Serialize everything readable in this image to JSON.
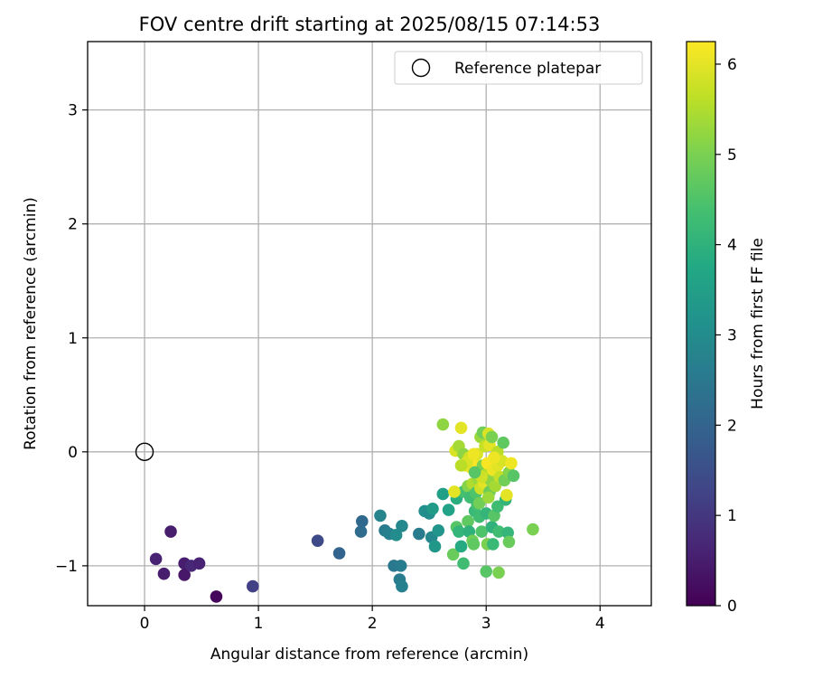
{
  "chart_data": {
    "type": "scatter",
    "title": "FOV centre drift starting at 2025/08/15 07:14:53",
    "xlabel": "Angular distance from reference (arcmin)",
    "ylabel": "Rotation from reference (arcmin)",
    "xlim": [
      -0.5,
      4.45
    ],
    "ylim": [
      -1.35,
      3.6
    ],
    "x_ticks": [
      0,
      1,
      2,
      3,
      4
    ],
    "y_ticks": [
      -1,
      0,
      1,
      2,
      3
    ],
    "x_tick_labels": [
      "0",
      "1",
      "2",
      "3",
      "4"
    ],
    "y_tick_labels": [
      "−1",
      "0",
      "1",
      "2",
      "3"
    ],
    "grid": true,
    "legend": {
      "placement": "top-right",
      "entries": [
        "Reference platepar"
      ]
    },
    "reference_point": {
      "label": "Reference platepar",
      "x": 0,
      "y": 0,
      "marker": "open-circle"
    },
    "colorbar": {
      "label": "Hours from first FF file",
      "colormap": "viridis",
      "range": [
        0,
        6.25
      ],
      "ticks": [
        0,
        1,
        2,
        3,
        4,
        5,
        6
      ],
      "tick_labels": [
        "0",
        "1",
        "2",
        "3",
        "4",
        "5",
        "6"
      ]
    },
    "series": [
      {
        "marker": "filled-circle",
        "points": [
          {
            "x": 0.63,
            "y": -1.27,
            "t": 0.1
          },
          {
            "x": 0.23,
            "y": -0.7,
            "t": 0.5
          },
          {
            "x": 0.1,
            "y": -0.94,
            "t": 0.6
          },
          {
            "x": 0.17,
            "y": -1.07,
            "t": 0.5
          },
          {
            "x": 0.35,
            "y": -0.98,
            "t": 0.5
          },
          {
            "x": 0.35,
            "y": -1.08,
            "t": 0.4
          },
          {
            "x": 0.41,
            "y": -1.0,
            "t": 0.7
          },
          {
            "x": 0.48,
            "y": -0.98,
            "t": 0.6
          },
          {
            "x": 0.95,
            "y": -1.18,
            "t": 1.2
          },
          {
            "x": 1.52,
            "y": -0.78,
            "t": 1.4
          },
          {
            "x": 1.71,
            "y": -0.89,
            "t": 2.0
          },
          {
            "x": 1.91,
            "y": -0.61,
            "t": 2.1
          },
          {
            "x": 1.9,
            "y": -0.7,
            "t": 2.2
          },
          {
            "x": 2.07,
            "y": -0.56,
            "t": 2.8
          },
          {
            "x": 2.11,
            "y": -0.69,
            "t": 2.6
          },
          {
            "x": 2.15,
            "y": -0.72,
            "t": 2.7
          },
          {
            "x": 2.21,
            "y": -0.73,
            "t": 3.0
          },
          {
            "x": 2.19,
            "y": -1.0,
            "t": 2.5
          },
          {
            "x": 2.25,
            "y": -1.0,
            "t": 2.6
          },
          {
            "x": 2.24,
            "y": -1.12,
            "t": 2.6
          },
          {
            "x": 2.26,
            "y": -1.18,
            "t": 2.7
          },
          {
            "x": 2.26,
            "y": -0.65,
            "t": 2.9
          },
          {
            "x": 2.41,
            "y": -0.72,
            "t": 2.6
          },
          {
            "x": 2.46,
            "y": -0.52,
            "t": 3.1
          },
          {
            "x": 2.5,
            "y": -0.54,
            "t": 3.0
          },
          {
            "x": 2.53,
            "y": -0.5,
            "t": 3.4
          },
          {
            "x": 2.52,
            "y": -0.75,
            "t": 2.9
          },
          {
            "x": 2.55,
            "y": -0.83,
            "t": 3.3
          },
          {
            "x": 2.58,
            "y": -0.69,
            "t": 3.2
          },
          {
            "x": 2.62,
            "y": -0.37,
            "t": 3.5
          },
          {
            "x": 2.67,
            "y": -0.51,
            "t": 3.6
          },
          {
            "x": 2.62,
            "y": 0.24,
            "t": 5.2
          },
          {
            "x": 2.71,
            "y": -0.9,
            "t": 4.8
          },
          {
            "x": 2.74,
            "y": -0.66,
            "t": 4.6
          },
          {
            "x": 2.76,
            "y": -0.7,
            "t": 4.1
          },
          {
            "x": 2.74,
            "y": -0.41,
            "t": 3.9
          },
          {
            "x": 2.78,
            "y": -0.83,
            "t": 3.8
          },
          {
            "x": 2.8,
            "y": -0.98,
            "t": 4.3
          },
          {
            "x": 2.84,
            "y": -0.61,
            "t": 4.7
          },
          {
            "x": 2.85,
            "y": -0.7,
            "t": 4.0
          },
          {
            "x": 2.88,
            "y": -0.78,
            "t": 4.9
          },
          {
            "x": 2.89,
            "y": -0.81,
            "t": 4.7
          },
          {
            "x": 2.9,
            "y": -0.52,
            "t": 4.2
          },
          {
            "x": 2.94,
            "y": -0.57,
            "t": 4.3
          },
          {
            "x": 2.96,
            "y": -0.7,
            "t": 4.5
          },
          {
            "x": 2.92,
            "y": -0.46,
            "t": 4.4
          },
          {
            "x": 3.0,
            "y": -1.05,
            "t": 4.6
          },
          {
            "x": 3.01,
            "y": -0.81,
            "t": 5.0
          },
          {
            "x": 3.06,
            "y": -0.81,
            "t": 4.2
          },
          {
            "x": 3.05,
            "y": -0.66,
            "t": 4.0
          },
          {
            "x": 3.11,
            "y": -0.7,
            "t": 4.3
          },
          {
            "x": 3.11,
            "y": -1.06,
            "t": 5.0
          },
          {
            "x": 3.19,
            "y": -0.71,
            "t": 4.1
          },
          {
            "x": 3.2,
            "y": -0.79,
            "t": 4.8
          },
          {
            "x": 3.0,
            "y": -0.54,
            "t": 4.1
          },
          {
            "x": 3.07,
            "y": -0.56,
            "t": 4.6
          },
          {
            "x": 3.1,
            "y": -0.48,
            "t": 4.3
          },
          {
            "x": 3.17,
            "y": -0.42,
            "t": 4.1
          },
          {
            "x": 3.41,
            "y": -0.68,
            "t": 5.0
          },
          {
            "x": 2.78,
            "y": 0.21,
            "t": 6.0
          },
          {
            "x": 2.73,
            "y": 0.01,
            "t": 5.9
          },
          {
            "x": 2.76,
            "y": 0.05,
            "t": 5.4
          },
          {
            "x": 2.8,
            "y": -0.02,
            "t": 5.2
          },
          {
            "x": 2.82,
            "y": -0.12,
            "t": 6.1
          },
          {
            "x": 2.85,
            "y": -0.05,
            "t": 5.8
          },
          {
            "x": 2.87,
            "y": -0.14,
            "t": 6.0
          },
          {
            "x": 2.89,
            "y": -0.08,
            "t": 6.2
          },
          {
            "x": 2.92,
            "y": -0.02,
            "t": 5.9
          },
          {
            "x": 2.95,
            "y": 0.13,
            "t": 5.3
          },
          {
            "x": 2.97,
            "y": 0.17,
            "t": 4.9
          },
          {
            "x": 2.99,
            "y": 0.05,
            "t": 5.7
          },
          {
            "x": 3.02,
            "y": 0.16,
            "t": 5.9
          },
          {
            "x": 3.03,
            "y": 0.06,
            "t": 6.0
          },
          {
            "x": 3.05,
            "y": 0.13,
            "t": 5.0
          },
          {
            "x": 3.1,
            "y": 0.0,
            "t": 5.6
          },
          {
            "x": 3.15,
            "y": 0.08,
            "t": 4.7
          },
          {
            "x": 2.8,
            "y": -0.35,
            "t": 4.4
          },
          {
            "x": 2.84,
            "y": -0.3,
            "t": 5.1
          },
          {
            "x": 2.86,
            "y": -0.4,
            "t": 4.3
          },
          {
            "x": 2.88,
            "y": -0.28,
            "t": 5.5
          },
          {
            "x": 2.91,
            "y": -0.36,
            "t": 4.5
          },
          {
            "x": 2.93,
            "y": -0.24,
            "t": 5.3
          },
          {
            "x": 2.95,
            "y": -0.32,
            "t": 5.8
          },
          {
            "x": 2.97,
            "y": -0.12,
            "t": 5.0
          },
          {
            "x": 2.98,
            "y": -0.27,
            "t": 6.0
          },
          {
            "x": 3.0,
            "y": -0.2,
            "t": 5.6
          },
          {
            "x": 3.01,
            "y": -0.1,
            "t": 6.2
          },
          {
            "x": 3.03,
            "y": -0.35,
            "t": 4.8
          },
          {
            "x": 3.04,
            "y": -0.25,
            "t": 5.2
          },
          {
            "x": 3.06,
            "y": -0.16,
            "t": 6.1
          },
          {
            "x": 3.08,
            "y": -0.3,
            "t": 5.4
          },
          {
            "x": 3.1,
            "y": -0.12,
            "t": 6.0
          },
          {
            "x": 3.12,
            "y": -0.22,
            "t": 5.7
          },
          {
            "x": 3.14,
            "y": -0.08,
            "t": 5.9
          },
          {
            "x": 3.16,
            "y": -0.25,
            "t": 4.9
          },
          {
            "x": 3.18,
            "y": -0.38,
            "t": 6.0
          },
          {
            "x": 3.2,
            "y": -0.18,
            "t": 5.1
          },
          {
            "x": 3.22,
            "y": -0.1,
            "t": 6.1
          },
          {
            "x": 3.24,
            "y": -0.21,
            "t": 4.6
          },
          {
            "x": 2.96,
            "y": -0.22,
            "t": 5.8
          },
          {
            "x": 2.9,
            "y": -0.18,
            "t": 4.6
          },
          {
            "x": 2.94,
            "y": -0.45,
            "t": 4.9
          },
          {
            "x": 3.02,
            "y": -0.4,
            "t": 5.3
          },
          {
            "x": 2.83,
            "y": -0.09,
            "t": 5.9
          },
          {
            "x": 2.78,
            "y": -0.12,
            "t": 5.6
          },
          {
            "x": 3.07,
            "y": -0.05,
            "t": 6.1
          },
          {
            "x": 2.72,
            "y": -0.35,
            "t": 6.0
          },
          {
            "x": 2.89,
            "y": -0.02,
            "t": 6.1
          }
        ]
      }
    ]
  }
}
